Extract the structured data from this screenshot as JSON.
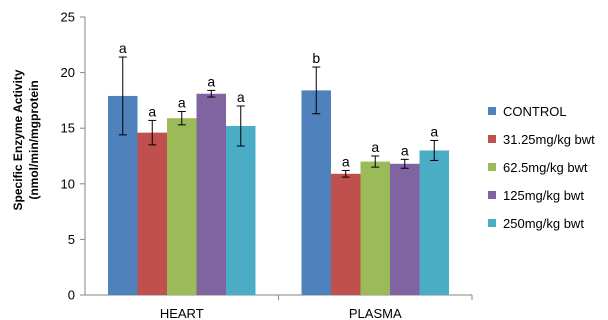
{
  "chart_data": {
    "type": "bar",
    "title": "",
    "xlabel": "",
    "ylabel": [
      "Specific Enzyme Activity",
      "(nmol/min/mgprotein"
    ],
    "ylim": [
      0,
      25
    ],
    "yticks": [
      0,
      5,
      10,
      15,
      20,
      25
    ],
    "grid": false,
    "legend_position": "right",
    "categories": [
      "HEART",
      "PLASMA"
    ],
    "series": [
      {
        "name": "CONTROL",
        "color": "#4f81bd",
        "values": [
          17.9,
          18.4
        ],
        "errors": [
          3.5,
          2.1
        ],
        "annotations": [
          "a",
          "b"
        ]
      },
      {
        "name": "31.25mg/kg bwt",
        "color": "#c0504d",
        "values": [
          14.6,
          10.9
        ],
        "errors": [
          1.1,
          0.3
        ],
        "annotations": [
          "a",
          "a"
        ]
      },
      {
        "name": "62.5mg/kg bwt",
        "color": "#9bbb59",
        "values": [
          15.9,
          12.0
        ],
        "errors": [
          0.6,
          0.5
        ],
        "annotations": [
          "a",
          "a"
        ]
      },
      {
        "name": "125mg/kg bwt",
        "color": "#8064a2",
        "values": [
          18.1,
          11.8
        ],
        "errors": [
          0.3,
          0.4
        ],
        "annotations": [
          "a",
          "a"
        ]
      },
      {
        "name": "250mg/kg bwt",
        "color": "#4bacc6",
        "values": [
          15.2,
          13.0
        ],
        "errors": [
          1.8,
          0.9
        ],
        "annotations": [
          "a",
          "a"
        ]
      }
    ]
  }
}
